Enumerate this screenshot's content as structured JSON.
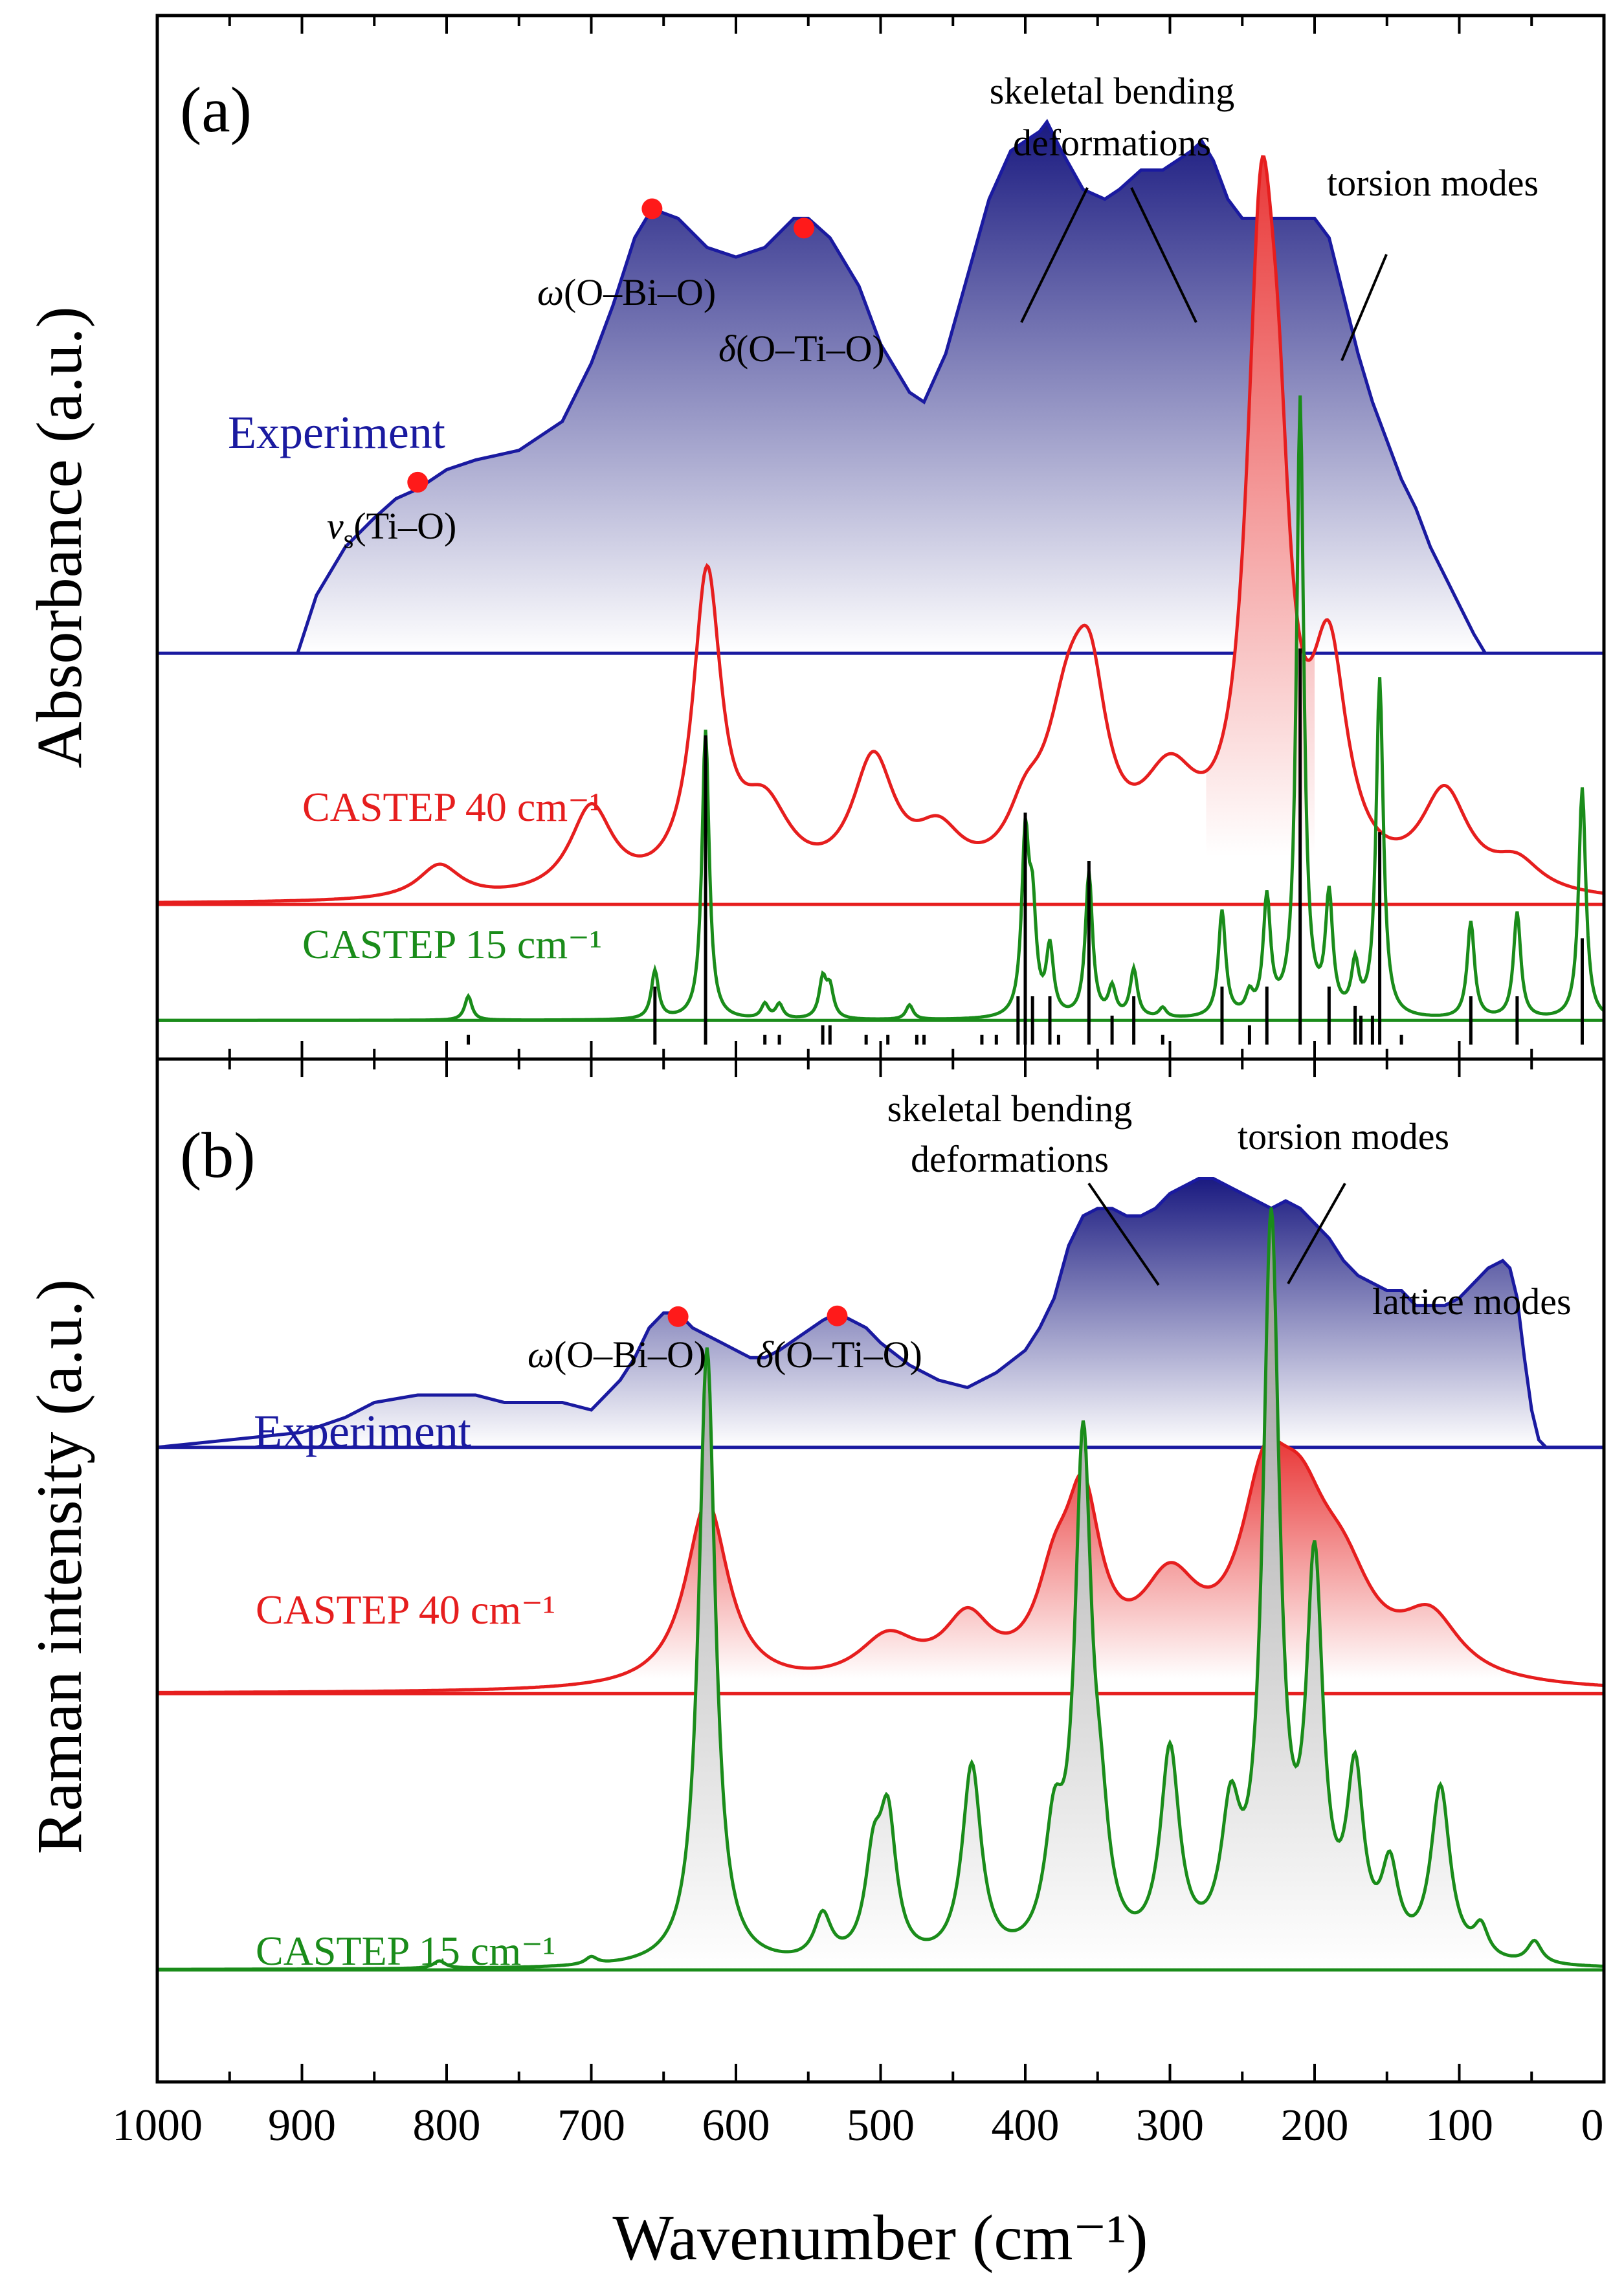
{
  "figure": {
    "xlabel": "Wavenumber (cm⁻¹)",
    "xlim": [
      1000,
      0
    ],
    "xticks": [
      1000,
      900,
      800,
      700,
      600,
      500,
      400,
      300,
      200,
      100,
      0
    ],
    "colors": {
      "experiment": "#1a1aa0",
      "castep40": "#e61e1e",
      "castep15": "#1a8c1a",
      "sticks": "#000000",
      "markers": "#ff1a1a"
    }
  },
  "chart_data": [
    {
      "type": "line",
      "panel_label": "(a)",
      "ylabel": "Absorbance (a.u.)",
      "xlim": [
        1000,
        0
      ],
      "series": [
        {
          "name": "Experiment",
          "baseline": 0.34,
          "x": [
            903,
            890,
            870,
            850,
            835,
            820,
            800,
            780,
            750,
            720,
            700,
            685,
            670,
            658,
            640,
            620,
            600,
            580,
            560,
            550,
            535,
            515,
            500,
            480,
            470,
            455,
            440,
            425,
            410,
            400,
            390,
            385,
            375,
            360,
            345,
            335,
            320,
            305,
            295,
            285,
            278,
            270,
            260,
            250,
            240,
            230,
            220,
            210,
            200,
            190,
            180,
            170,
            160,
            150,
            140,
            130,
            120,
            110,
            100,
            90,
            82
          ],
          "y": [
            0.34,
            0.4,
            0.45,
            0.48,
            0.5,
            0.51,
            0.53,
            0.54,
            0.55,
            0.58,
            0.64,
            0.7,
            0.77,
            0.8,
            0.79,
            0.76,
            0.75,
            0.76,
            0.79,
            0.79,
            0.77,
            0.72,
            0.66,
            0.61,
            0.6,
            0.65,
            0.73,
            0.81,
            0.86,
            0.87,
            0.88,
            0.89,
            0.86,
            0.82,
            0.81,
            0.82,
            0.84,
            0.84,
            0.85,
            0.86,
            0.87,
            0.85,
            0.81,
            0.79,
            0.79,
            0.79,
            0.79,
            0.79,
            0.79,
            0.77,
            0.71,
            0.65,
            0.6,
            0.56,
            0.52,
            0.49,
            0.45,
            0.42,
            0.39,
            0.36,
            0.34
          ]
        },
        {
          "name": "CASTEP 40 cm⁻¹",
          "baseline": 0.08,
          "peaks": [
            [
              805,
              0.035,
              18
            ],
            [
              700,
              0.09,
              18
            ],
            [
              620,
              0.32,
              12
            ],
            [
              580,
              0.08,
              22
            ],
            [
              505,
              0.13,
              18
            ],
            [
              460,
              0.05,
              20
            ],
            [
              400,
              0.05,
              15
            ],
            [
              370,
              0.16,
              20
            ],
            [
              355,
              0.14,
              14
            ],
            [
              300,
              0.1,
              25
            ],
            [
              237,
              0.62,
              12
            ],
            [
              225,
              0.25,
              10
            ],
            [
              190,
              0.22,
              15
            ],
            [
              110,
              0.1,
              20
            ],
            [
              60,
              0.03,
              20
            ]
          ]
        },
        {
          "name": "CASTEP 15 cm⁻¹",
          "baseline": -0.04,
          "peaks": [
            [
              785,
              0.025,
              3
            ],
            [
              656,
              0.05,
              3
            ],
            [
              621,
              0.3,
              3
            ],
            [
              580,
              0.015,
              3
            ],
            [
              570,
              0.015,
              3
            ],
            [
              540,
              0.04,
              3
            ],
            [
              535,
              0.03,
              3
            ],
            [
              480,
              0.015,
              3
            ],
            [
              400,
              0.18,
              3
            ],
            [
              395,
              0.1,
              3
            ],
            [
              383,
              0.07,
              3
            ],
            [
              356,
              0.15,
              3
            ],
            [
              340,
              0.03,
              3
            ],
            [
              325,
              0.05,
              3
            ],
            [
              305,
              0.01,
              3
            ],
            [
              264,
              0.11,
              3
            ],
            [
              245,
              0.02,
              3
            ],
            [
              233,
              0.12,
              3
            ],
            [
              210,
              0.64,
              3
            ],
            [
              190,
              0.12,
              3
            ],
            [
              172,
              0.05,
              3
            ],
            [
              155,
              0.35,
              3
            ],
            [
              92,
              0.1,
              3
            ],
            [
              60,
              0.11,
              3
            ],
            [
              15,
              0.24,
              3
            ]
          ]
        },
        {
          "name": "sticks",
          "baseline": -0.065,
          "sticks": [
            [
              785,
              0.01
            ],
            [
              656,
              0.06
            ],
            [
              621,
              0.32
            ],
            [
              580,
              0.01
            ],
            [
              570,
              0.01
            ],
            [
              540,
              0.02
            ],
            [
              535,
              0.02
            ],
            [
              510,
              0.01
            ],
            [
              495,
              0.01
            ],
            [
              475,
              0.01
            ],
            [
              470,
              0.01
            ],
            [
              430,
              0.01
            ],
            [
              420,
              0.01
            ],
            [
              405,
              0.05
            ],
            [
              400,
              0.24
            ],
            [
              395,
              0.05
            ],
            [
              383,
              0.05
            ],
            [
              377,
              0.01
            ],
            [
              356,
              0.19
            ],
            [
              340,
              0.03
            ],
            [
              325,
              0.05
            ],
            [
              305,
              0.01
            ],
            [
              264,
              0.06
            ],
            [
              245,
              0.02
            ],
            [
              233,
              0.06
            ],
            [
              210,
              0.41
            ],
            [
              190,
              0.06
            ],
            [
              172,
              0.04
            ],
            [
              168,
              0.03
            ],
            [
              160,
              0.03
            ],
            [
              155,
              0.22
            ],
            [
              140,
              0.01
            ],
            [
              92,
              0.05
            ],
            [
              60,
              0.05
            ],
            [
              15,
              0.11
            ]
          ]
        }
      ],
      "ylim": [
        -0.08,
        1.0
      ],
      "markers": [
        [
          820,
          0.517
        ],
        [
          658,
          0.8
        ],
        [
          553,
          0.78
        ]
      ],
      "annotations": [
        "ν",
        "s",
        "(Ti–O)",
        "ω",
        "(O–Bi–O)",
        "δ",
        "(O–Ti–O)",
        "skeletal bending",
        "deformations",
        "torsion modes"
      ]
    },
    {
      "type": "line",
      "panel_label": "(b)",
      "ylabel": "Raman intensity (a.u.)",
      "xlim": [
        1000,
        0
      ],
      "series": [
        {
          "name": "Experiment",
          "baseline": 0.7,
          "x": [
            1000,
            950,
            900,
            870,
            850,
            820,
            800,
            780,
            760,
            740,
            720,
            700,
            690,
            680,
            670,
            660,
            650,
            640,
            630,
            620,
            610,
            600,
            590,
            580,
            570,
            555,
            540,
            530,
            520,
            510,
            500,
            480,
            460,
            440,
            430,
            420,
            400,
            390,
            380,
            370,
            360,
            350,
            340,
            330,
            320,
            310,
            300,
            290,
            280,
            270,
            260,
            250,
            240,
            230,
            220,
            210,
            200,
            190,
            180,
            170,
            160,
            150,
            140,
            130,
            120,
            110,
            100,
            90,
            80,
            70,
            65,
            60,
            55,
            50,
            45,
            40,
            30,
            0
          ],
          "y": [
            0.7,
            0.71,
            0.72,
            0.74,
            0.76,
            0.77,
            0.77,
            0.77,
            0.76,
            0.76,
            0.76,
            0.75,
            0.77,
            0.79,
            0.82,
            0.86,
            0.88,
            0.88,
            0.86,
            0.85,
            0.84,
            0.83,
            0.82,
            0.82,
            0.83,
            0.85,
            0.87,
            0.88,
            0.87,
            0.86,
            0.84,
            0.81,
            0.79,
            0.78,
            0.79,
            0.8,
            0.83,
            0.86,
            0.9,
            0.97,
            1.01,
            1.02,
            1.02,
            1.01,
            1.01,
            1.02,
            1.04,
            1.05,
            1.06,
            1.06,
            1.05,
            1.04,
            1.03,
            1.02,
            1.03,
            1.02,
            1.0,
            0.98,
            0.95,
            0.93,
            0.92,
            0.91,
            0.91,
            0.89,
            0.89,
            0.89,
            0.9,
            0.92,
            0.94,
            0.95,
            0.94,
            0.9,
            0.82,
            0.75,
            0.71,
            0.7,
            0.7,
            0.7
          ]
        },
        {
          "name": "CASTEP 40 cm⁻¹",
          "baseline": 0.37,
          "peaks": [
            [
              620,
              0.25,
              18
            ],
            [
              495,
              0.06,
              25
            ],
            [
              440,
              0.08,
              20
            ],
            [
              380,
              0.1,
              15
            ],
            [
              360,
              0.22,
              15
            ],
            [
              300,
              0.12,
              25
            ],
            [
              235,
              0.2,
              20
            ],
            [
              210,
              0.18,
              25
            ],
            [
              180,
              0.1,
              25
            ],
            [
              120,
              0.08,
              25
            ]
          ]
        },
        {
          "name": "CASTEP 15 cm⁻¹",
          "baseline": 0.0,
          "peaks": [
            [
              805,
              0.01,
              5
            ],
            [
              700,
              0.01,
              5
            ],
            [
              620,
              0.83,
              7
            ],
            [
              540,
              0.06,
              7
            ],
            [
              505,
              0.12,
              7
            ],
            [
              495,
              0.18,
              7
            ],
            [
              437,
              0.26,
              8
            ],
            [
              380,
              0.15,
              8
            ],
            [
              360,
              0.67,
              7
            ],
            [
              348,
              0.12,
              7
            ],
            [
              300,
              0.27,
              8
            ],
            [
              258,
              0.17,
              8
            ],
            [
              230,
              0.97,
              7
            ],
            [
              200,
              0.5,
              7
            ],
            [
              172,
              0.23,
              7
            ],
            [
              148,
              0.11,
              7
            ],
            [
              113,
              0.23,
              8
            ],
            [
              85,
              0.04,
              6
            ],
            [
              48,
              0.03,
              6
            ]
          ]
        }
      ],
      "ylim": [
        -0.15,
        1.22
      ],
      "markers": [
        [
          640,
          0.875
        ],
        [
          530,
          0.876
        ]
      ],
      "annotations": [
        "ω",
        "(O–Bi–O)",
        "δ",
        "(O–Ti–O)",
        "skeletal bending",
        "deformations",
        "torsion modes",
        "lattice modes"
      ]
    }
  ]
}
